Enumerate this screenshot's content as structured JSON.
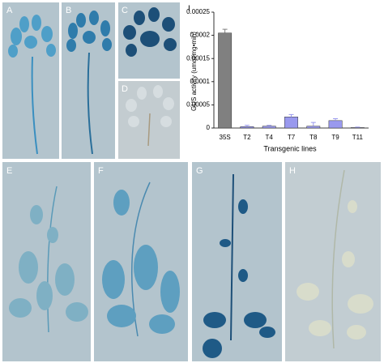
{
  "panels": [
    "A",
    "B",
    "C",
    "D",
    "E",
    "F",
    "G",
    "H"
  ],
  "chart_data": {
    "type": "bar",
    "label": "I",
    "categories": [
      "35S",
      "T2",
      "T4",
      "T7",
      "T8",
      "T9",
      "T11"
    ],
    "values": [
      0.000205,
      3e-06,
      4e-06,
      2.4e-05,
      4e-06,
      1.6e-05,
      1e-06
    ],
    "errors": [
      8e-06,
      3e-06,
      2e-06,
      5e-06,
      8e-06,
      4e-06,
      1e-06
    ],
    "colors": [
      "#808080",
      "#9999ee",
      "#9999ee",
      "#9999ee",
      "#9999ee",
      "#9999ee",
      "#9999ee"
    ],
    "ylabel": "GUS activity (umol/mg•min)",
    "xlabel": "Transgenic lines",
    "ylim": [
      0,
      0.00025
    ],
    "yticks": [
      0,
      5e-05,
      0.0001,
      0.00015,
      0.0002,
      0.00025
    ]
  }
}
